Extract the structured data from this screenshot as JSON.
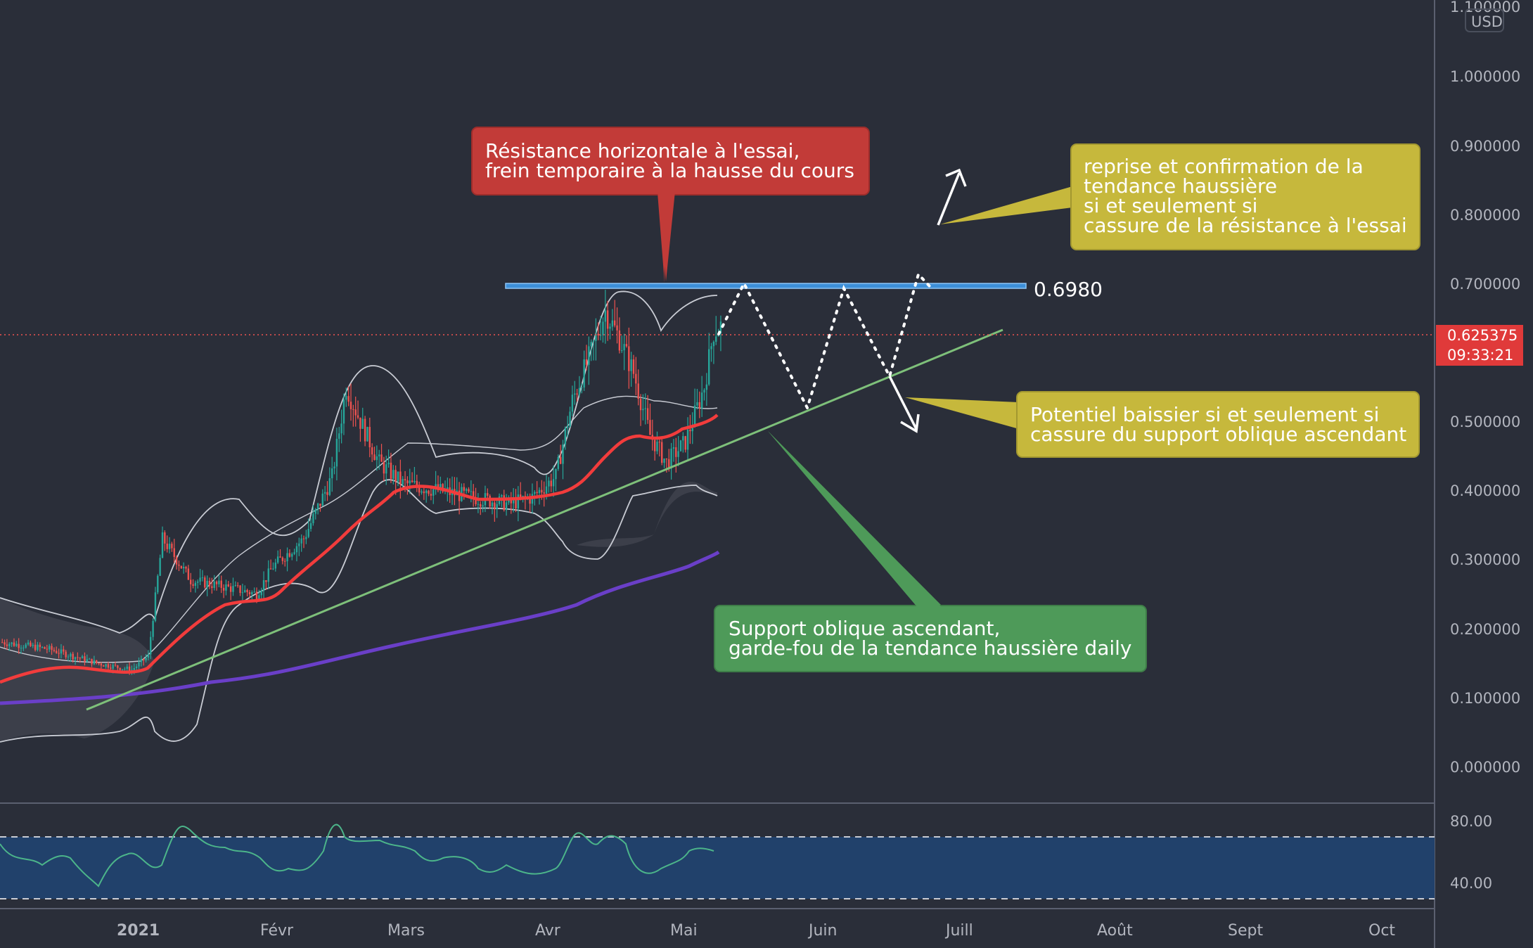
{
  "chart_data": {
    "type": "candlestick",
    "currency": "USD",
    "price_axis": {
      "ticks": [
        "1.100000",
        "1.000000",
        "0.900000",
        "0.800000",
        "0.700000",
        "0.600000",
        "0.500000",
        "0.400000",
        "0.300000",
        "0.200000",
        "0.100000",
        "0.000000"
      ],
      "values": [
        1.1,
        1.0,
        0.9,
        0.8,
        0.7,
        0.6,
        0.5,
        0.4,
        0.3,
        0.2,
        0.1,
        0.0
      ]
    },
    "last_price": {
      "value": "0.625375",
      "countdown": "09:33:21"
    },
    "resistance": {
      "value": 0.698,
      "label": "0.6980"
    },
    "time_axis": [
      "2021",
      "Févr",
      "Mars",
      "Avr",
      "Mai",
      "Juin",
      "Juill",
      "Août",
      "Sept",
      "Oct"
    ],
    "rsi_axis": {
      "ticks": [
        "80.00",
        "40.00"
      ],
      "values": [
        80,
        40
      ]
    },
    "annotations": {
      "resistance": [
        "Résistance horizontale à l'essai,",
        "frein temporaire à la hausse du cours"
      ],
      "bullish": [
        "reprise et confirmation de la",
        "tendance haussière",
        "si et seulement si",
        "cassure de la résistance à l'essai"
      ],
      "bearish": [
        "Potentiel baissier si et seulement si",
        "cassure du support oblique ascendant"
      ],
      "support": [
        "Support oblique ascendant,",
        "garde-fou de la tendance haussière daily"
      ]
    },
    "colors": {
      "background": "#2a2e39",
      "up": "#26a69a",
      "down": "#ef5350",
      "ema_fast": "#f23c3c",
      "ema_slow": "#6a3fc8",
      "support": "#7ec07a",
      "resistance_line": "#3d8fd8",
      "rsi_band": "#21416b",
      "callout_red": "#c23b38",
      "callout_yellow": "#c6b83c",
      "callout_green": "#4e9a59"
    }
  }
}
